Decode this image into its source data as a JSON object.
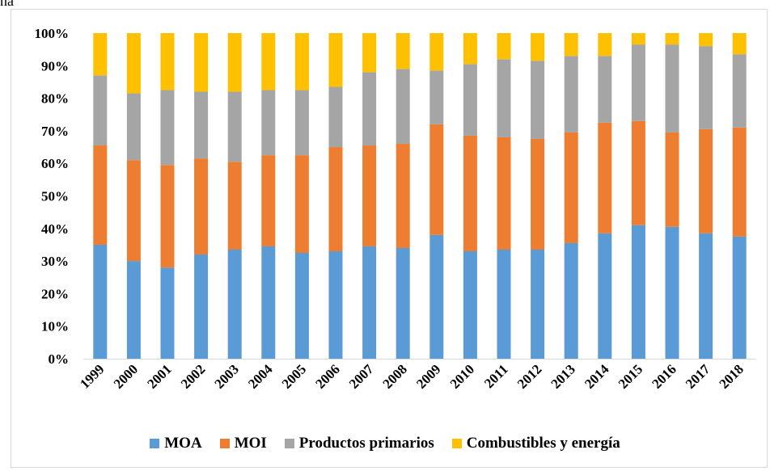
{
  "top_fragment": "na",
  "chart_data": {
    "type": "bar",
    "stacked": true,
    "percent": true,
    "categories": [
      "1999",
      "2000",
      "2001",
      "2002",
      "2003",
      "2004",
      "2005",
      "2006",
      "2007",
      "2008",
      "2009",
      "2010",
      "2011",
      "2012",
      "2013",
      "2014",
      "2015",
      "2016",
      "2017",
      "2018"
    ],
    "y_ticks": [
      "0%",
      "10%",
      "20%",
      "30%",
      "40%",
      "50%",
      "60%",
      "70%",
      "80%",
      "90%",
      "100%"
    ],
    "ylim": [
      0,
      100
    ],
    "grid": false,
    "legend_position": "bottom",
    "series": [
      {
        "name": "MOA",
        "color": "#5B9BD5",
        "values": [
          35,
          30,
          28,
          32,
          33.5,
          34.5,
          32.5,
          33,
          34.5,
          34,
          38,
          33,
          33.5,
          33.5,
          35.5,
          38.5,
          41,
          40.5,
          38.5,
          37.5
        ]
      },
      {
        "name": "MOI",
        "color": "#ED7D31",
        "values": [
          30.5,
          31,
          31.5,
          29.5,
          27,
          28,
          30,
          32,
          31,
          32,
          34,
          35.5,
          34.5,
          34,
          34,
          34,
          32,
          29,
          32,
          33.5
        ]
      },
      {
        "name": "Productos primarios",
        "color": "#A5A5A5",
        "values": [
          21.5,
          20.5,
          23,
          20.5,
          21.5,
          20,
          20,
          18.5,
          22.5,
          23,
          16.5,
          22,
          24,
          24,
          23.5,
          20.5,
          23.5,
          27,
          25.5,
          22.5
        ]
      },
      {
        "name": "Combustibles y energía",
        "color": "#FFC000",
        "values": [
          13,
          18.5,
          17.5,
          18,
          18,
          17.5,
          17.5,
          16.5,
          12,
          11,
          11.5,
          9.5,
          8,
          8.5,
          7,
          7,
          3.5,
          3.5,
          4,
          6.5
        ]
      }
    ]
  }
}
